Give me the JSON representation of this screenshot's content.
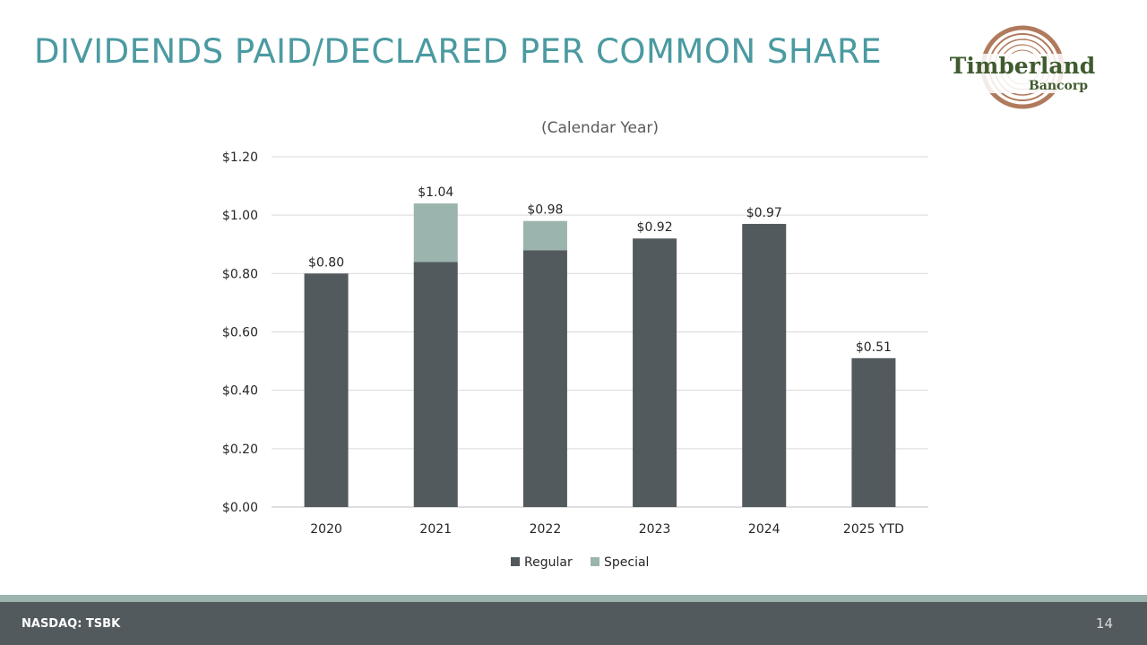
{
  "slide": {
    "title": "DIVIDENDS PAID/DECLARED PER COMMON SHARE",
    "page_number": "14",
    "ticker": "NASDAQ: TSBK",
    "colors": {
      "title": "#4b9aa1",
      "regular": "#525a5d",
      "special": "#9cb4ae",
      "footer_bar": "#525a5d",
      "footer_stripe": "#9cb4ae",
      "logo_text": "#3f5b2f",
      "logo_rings": "#b07a5c"
    }
  },
  "logo": {
    "line1": "Timberland",
    "line2": "Bancorp"
  },
  "chart_data": {
    "type": "bar",
    "stacked": true,
    "title": "(Calendar Year)",
    "categories": [
      "2020",
      "2021",
      "2022",
      "2023",
      "2024",
      "2025 YTD"
    ],
    "series": [
      {
        "name": "Regular",
        "values": [
          0.8,
          0.84,
          0.88,
          0.92,
          0.97,
          0.51
        ]
      },
      {
        "name": "Special",
        "values": [
          0,
          0.2,
          0.1,
          0,
          0,
          0
        ]
      }
    ],
    "totals": [
      0.8,
      1.04,
      0.98,
      0.92,
      0.97,
      0.51
    ],
    "total_labels": [
      "$0.80",
      "$1.04",
      "$0.98",
      "$0.92",
      "$0.97",
      "$0.51"
    ],
    "ylim": [
      0,
      1.2
    ],
    "yticks": [
      0,
      0.2,
      0.4,
      0.6,
      0.8,
      1.0,
      1.2
    ],
    "ytick_labels": [
      "$0.00",
      "$0.20",
      "$0.40",
      "$0.60",
      "$0.80",
      "$1.00",
      "$1.20"
    ],
    "xlabel": "",
    "ylabel": "",
    "grid": true,
    "legend_position": "bottom"
  }
}
